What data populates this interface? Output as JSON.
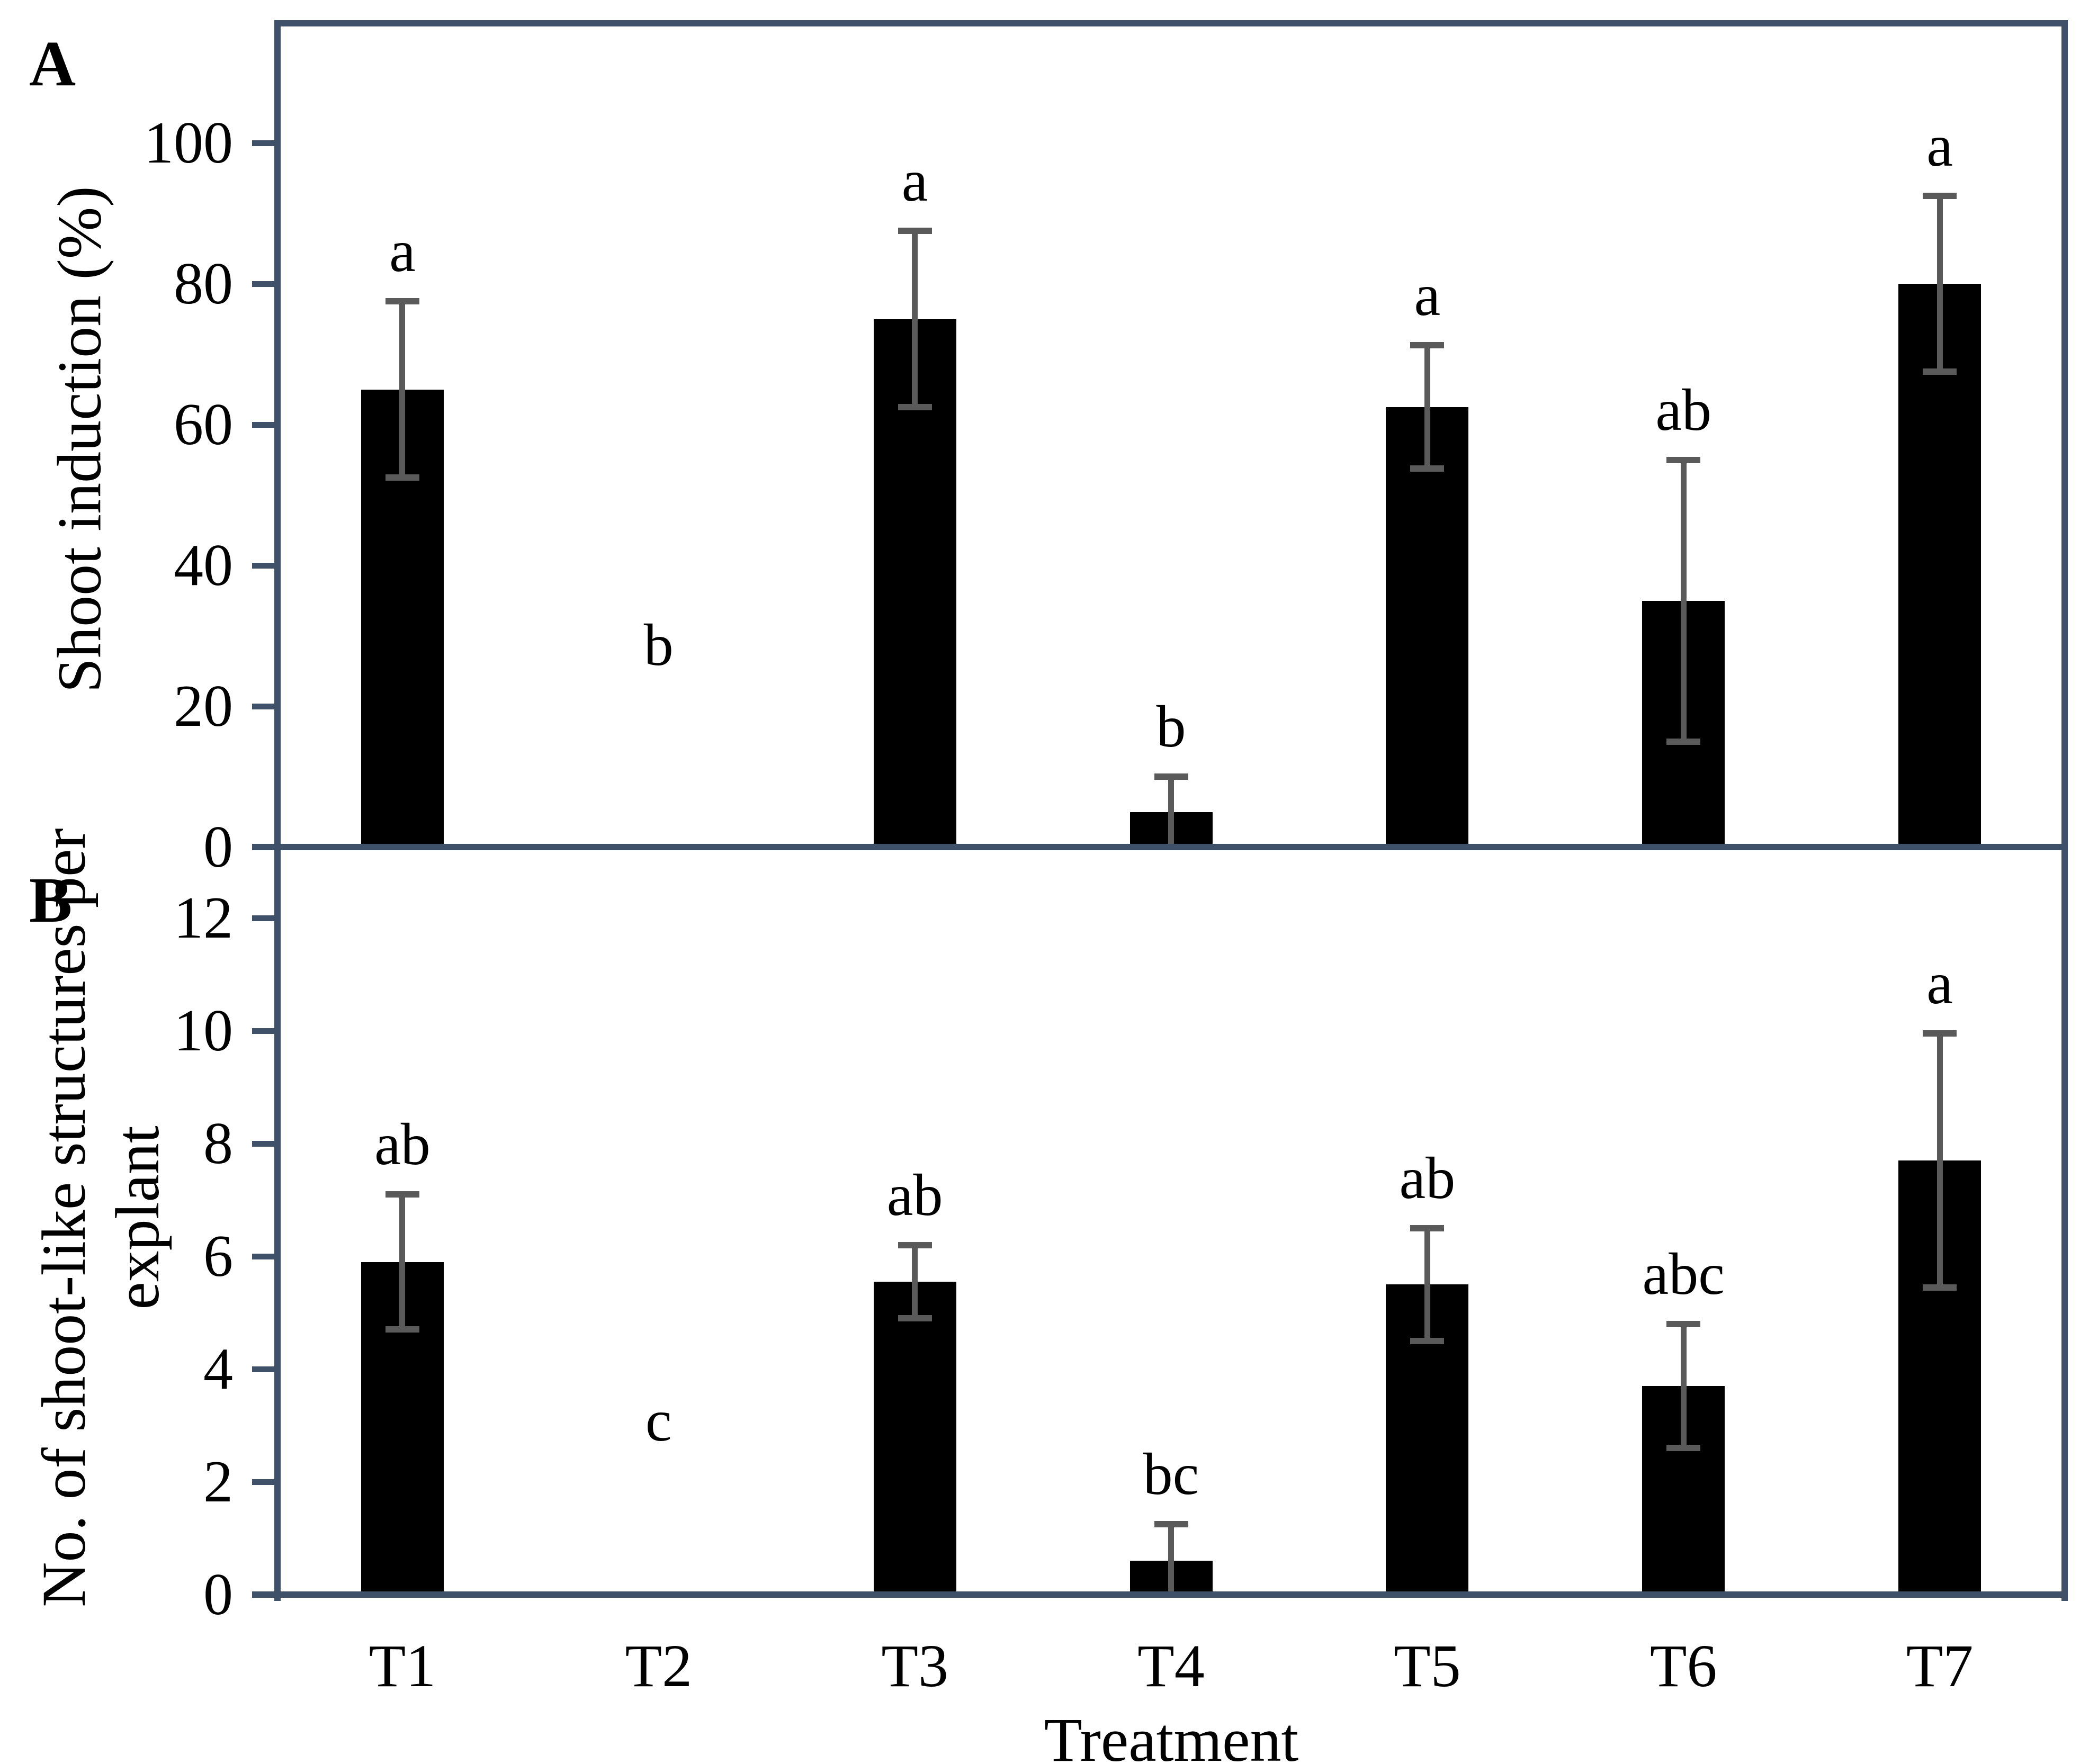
{
  "figure": {
    "panel_a_letter": "A",
    "panel_b_letter": "B",
    "xlabel": "Treatment"
  },
  "colors": {
    "bar": "#000000",
    "error_bar": "#5a5a5a",
    "axis_frame": "#3f5069",
    "text": "#000000"
  },
  "chart_data": [
    {
      "type": "bar",
      "panel": "A",
      "ylabel": "Shoot induction (%)",
      "categories": [
        "T1",
        "T2",
        "T3",
        "T4",
        "T5",
        "T6",
        "T7"
      ],
      "values": [
        65,
        0,
        75,
        5,
        62.5,
        35,
        80
      ],
      "errors": [
        12.5,
        0,
        12.5,
        5,
        8.75,
        20,
        12.5
      ],
      "sig_labels": [
        "a",
        "b",
        "a",
        "b",
        "a",
        "ab",
        "a"
      ],
      "yticks": [
        0,
        20,
        40,
        60,
        80,
        100
      ],
      "ylim": [
        0,
        117
      ],
      "grid": false,
      "legend": "none",
      "zero_bar_label_y": 28
    },
    {
      "type": "bar",
      "panel": "B",
      "ylabel_line1": "No. of shoot-like structures per",
      "ylabel_line2": "explant",
      "categories": [
        "T1",
        "T2",
        "T3",
        "T4",
        "T5",
        "T6",
        "T7"
      ],
      "values": [
        5.9,
        0,
        5.55,
        0.6,
        5.5,
        3.7,
        7.7
      ],
      "errors": [
        1.2,
        0,
        0.65,
        0.65,
        1.0,
        1.1,
        2.25
      ],
      "sig_labels": [
        "ab",
        "c",
        "ab",
        "bc",
        "ab",
        "abc",
        "a"
      ],
      "yticks": [
        0,
        2,
        4,
        6,
        8,
        10,
        12
      ],
      "ylim": [
        0,
        13.3
      ],
      "grid": false,
      "legend": "none",
      "zero_bar_label_y": 3.0
    }
  ]
}
